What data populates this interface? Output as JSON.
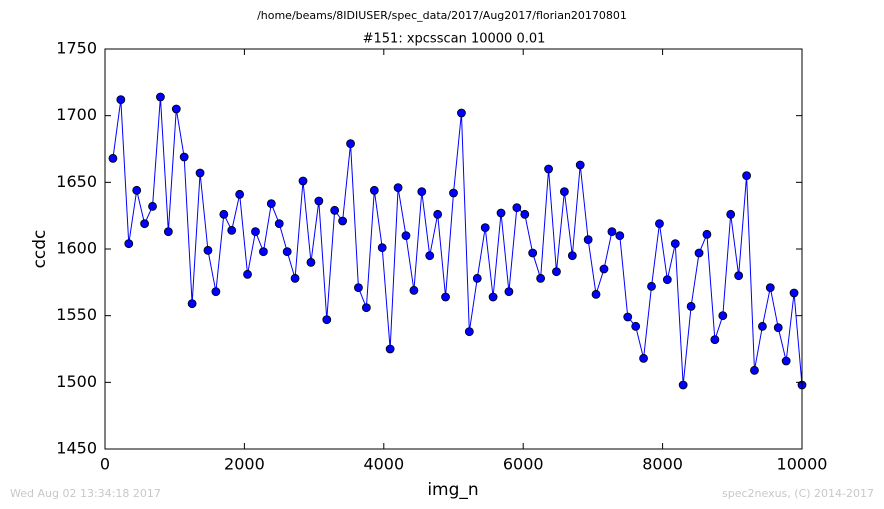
{
  "chart_data": {
    "type": "line",
    "suptitle": "/home/beams/8IDIUSER/spec_data/2017/Aug2017/florian20170801",
    "title": "#151: xpcsscan 10000 0.01",
    "xlabel": "img_n",
    "ylabel": "ccdc",
    "footer_left": "Wed Aug 02 13:34:18 2017",
    "footer_right": "spec2nexus, (C) 2014-2017",
    "xlim": [
      0,
      10000
    ],
    "ylim": [
      1450,
      1750
    ],
    "xticks": [
      0,
      2000,
      4000,
      6000,
      8000,
      10000
    ],
    "yticks": [
      1450,
      1500,
      1550,
      1600,
      1650,
      1700,
      1750
    ],
    "x": [
      114,
      227,
      341,
      455,
      568,
      682,
      795,
      909,
      1023,
      1136,
      1250,
      1364,
      1477,
      1591,
      1705,
      1818,
      1932,
      2045,
      2159,
      2273,
      2386,
      2500,
      2614,
      2727,
      2841,
      2955,
      3068,
      3182,
      3295,
      3409,
      3523,
      3636,
      3750,
      3864,
      3977,
      4091,
      4205,
      4318,
      4432,
      4545,
      4659,
      4773,
      4886,
      5000,
      5114,
      5227,
      5341,
      5455,
      5568,
      5682,
      5795,
      5909,
      6023,
      6136,
      6250,
      6364,
      6477,
      6591,
      6705,
      6818,
      6932,
      7045,
      7159,
      7273,
      7386,
      7500,
      7614,
      7727,
      7841,
      7955,
      8068,
      8182,
      8295,
      8409,
      8523,
      8636,
      8750,
      8864,
      8977,
      9091,
      9205,
      9318,
      9432,
      9545,
      9659,
      9773,
      9886,
      10000
    ],
    "series": [
      {
        "color": "#0000ff",
        "values": [
          1668,
          1712,
          1604,
          1644,
          1619,
          1632,
          1714,
          1613,
          1705,
          1669,
          1559,
          1657,
          1599,
          1568,
          1626,
          1614,
          1641,
          1581,
          1613,
          1598,
          1634,
          1619,
          1598,
          1578,
          1651,
          1590,
          1636,
          1547,
          1629,
          1621,
          1679,
          1571,
          1556,
          1644,
          1601,
          1525,
          1646,
          1610,
          1569,
          1643,
          1595,
          1626,
          1564,
          1642,
          1702,
          1538,
          1578,
          1616,
          1564,
          1627,
          1568,
          1631,
          1626,
          1597,
          1578,
          1660,
          1583,
          1643,
          1595,
          1663,
          1607,
          1566,
          1585,
          1613,
          1610,
          1549,
          1542,
          1518,
          1572,
          1619,
          1577,
          1604,
          1498,
          1557,
          1597,
          1611,
          1532,
          1550,
          1626,
          1580,
          1655,
          1509,
          1542,
          1571,
          1541,
          1516,
          1567,
          1498
        ]
      }
    ]
  }
}
